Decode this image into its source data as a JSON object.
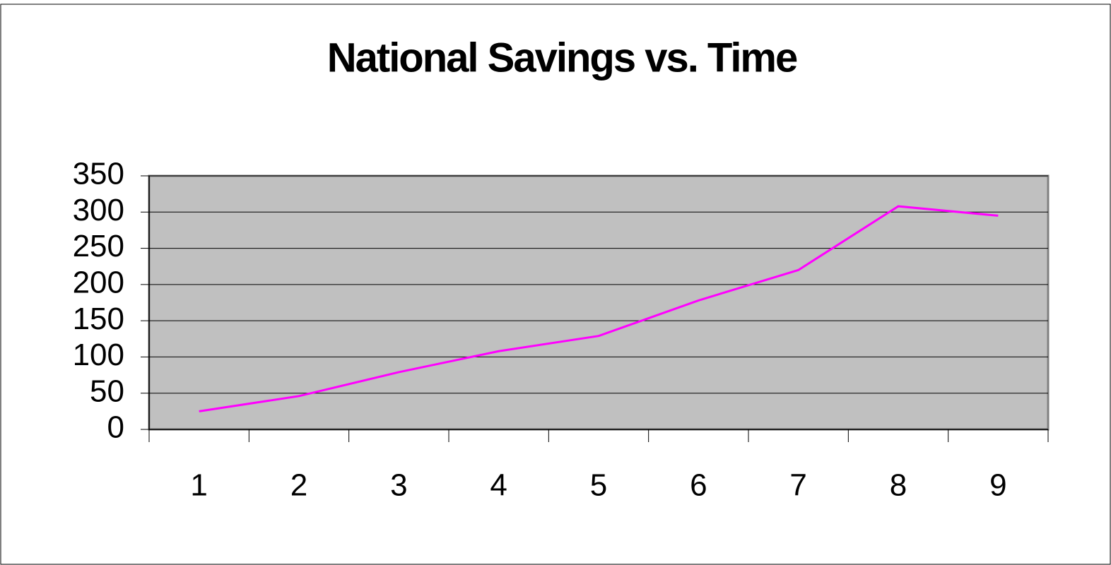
{
  "chart_data": {
    "type": "line",
    "title": "National Savings vs. Time",
    "categories": [
      "1",
      "2",
      "3",
      "4",
      "5",
      "6",
      "7",
      "8",
      "9"
    ],
    "series": [
      {
        "color": "#ff00ff",
        "values": [
          25,
          46,
          79,
          108,
          129,
          178,
          220,
          308,
          295
        ]
      }
    ],
    "ylim": [
      0,
      350
    ],
    "yticks": [
      0,
      50,
      100,
      150,
      200,
      250,
      300,
      350
    ],
    "grid": true
  }
}
